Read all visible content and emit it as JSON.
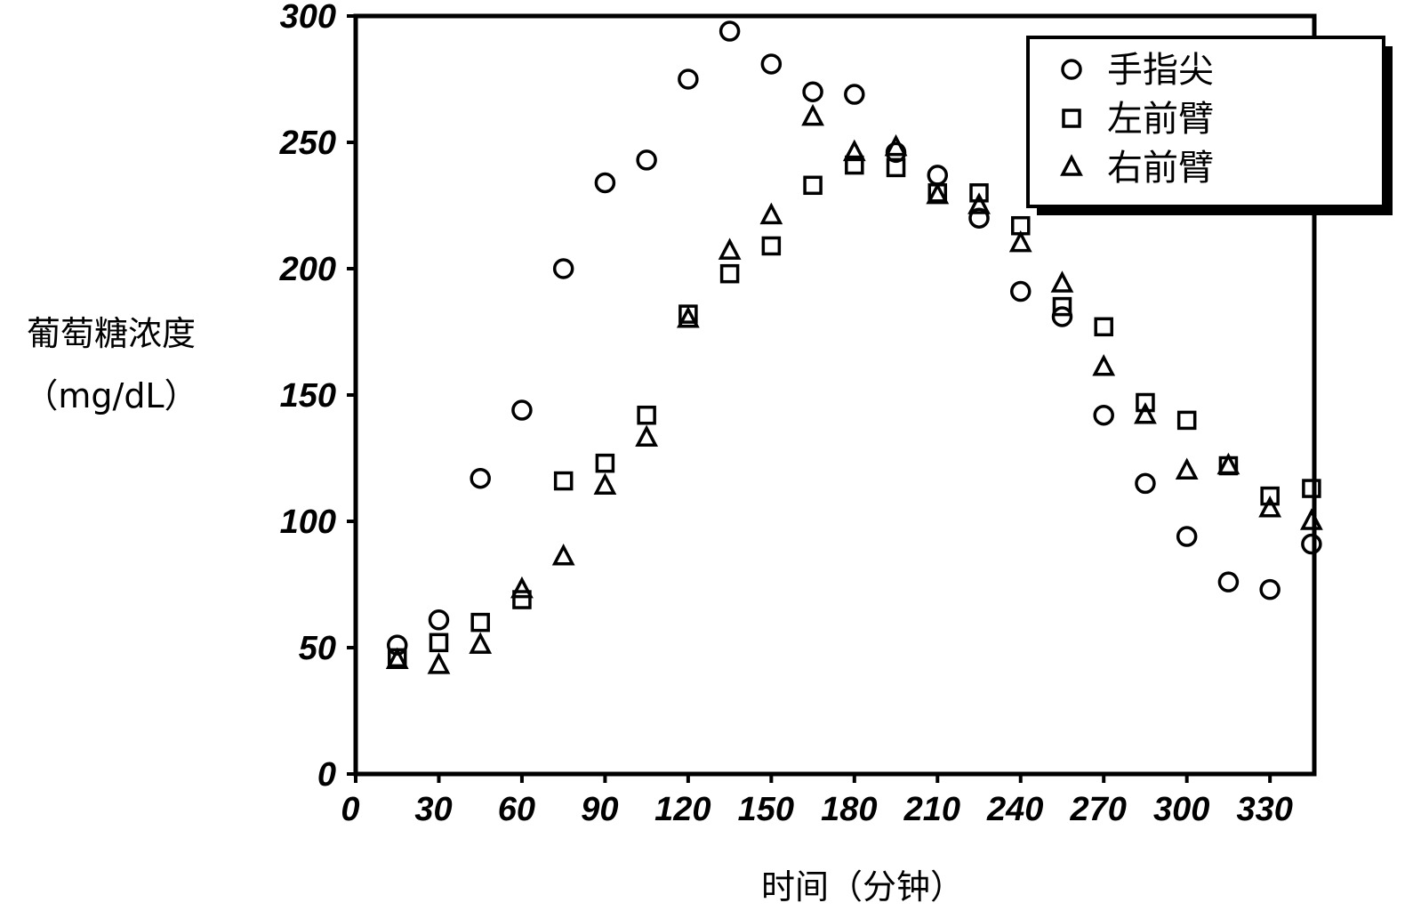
{
  "chart_data": {
    "type": "scatter",
    "y_label": [
      "葡萄糖浓度",
      "（mg/dL）"
    ],
    "x_label": "时间（分钟）",
    "xlim": [
      0,
      346
    ],
    "ylim": [
      0,
      300
    ],
    "xticks": [
      0,
      30,
      60,
      90,
      120,
      150,
      180,
      210,
      240,
      270,
      300,
      330
    ],
    "yticks": [
      0,
      50,
      100,
      150,
      200,
      250,
      300
    ],
    "x": [
      15,
      30,
      45,
      60,
      75,
      90,
      105,
      120,
      135,
      150,
      165,
      180,
      195,
      210,
      225,
      240,
      255,
      270,
      285,
      300,
      315,
      330,
      345
    ],
    "series": [
      {
        "name": "手指尖",
        "marker": "circle",
        "color": "#000000",
        "values": [
          51,
          61,
          117,
          144,
          200,
          234,
          243,
          275,
          294,
          281,
          270,
          269,
          246,
          237,
          220,
          191,
          181,
          142,
          115,
          94,
          76,
          73,
          91
        ]
      },
      {
        "name": "左前臂",
        "marker": "square",
        "color": "#000000",
        "values": [
          46,
          52,
          60,
          69,
          116,
          123,
          142,
          182,
          198,
          209,
          233,
          241,
          240,
          230,
          230,
          217,
          185,
          177,
          147,
          140,
          122,
          110,
          113
        ]
      },
      {
        "name": "右前臂",
        "marker": "triangle",
        "color": "#000000",
        "values": [
          45,
          43,
          51,
          73,
          86,
          114,
          133,
          180,
          207,
          221,
          260,
          246,
          248,
          229,
          225,
          210,
          194,
          161,
          142,
          120,
          122,
          105,
          100
        ]
      }
    ]
  }
}
